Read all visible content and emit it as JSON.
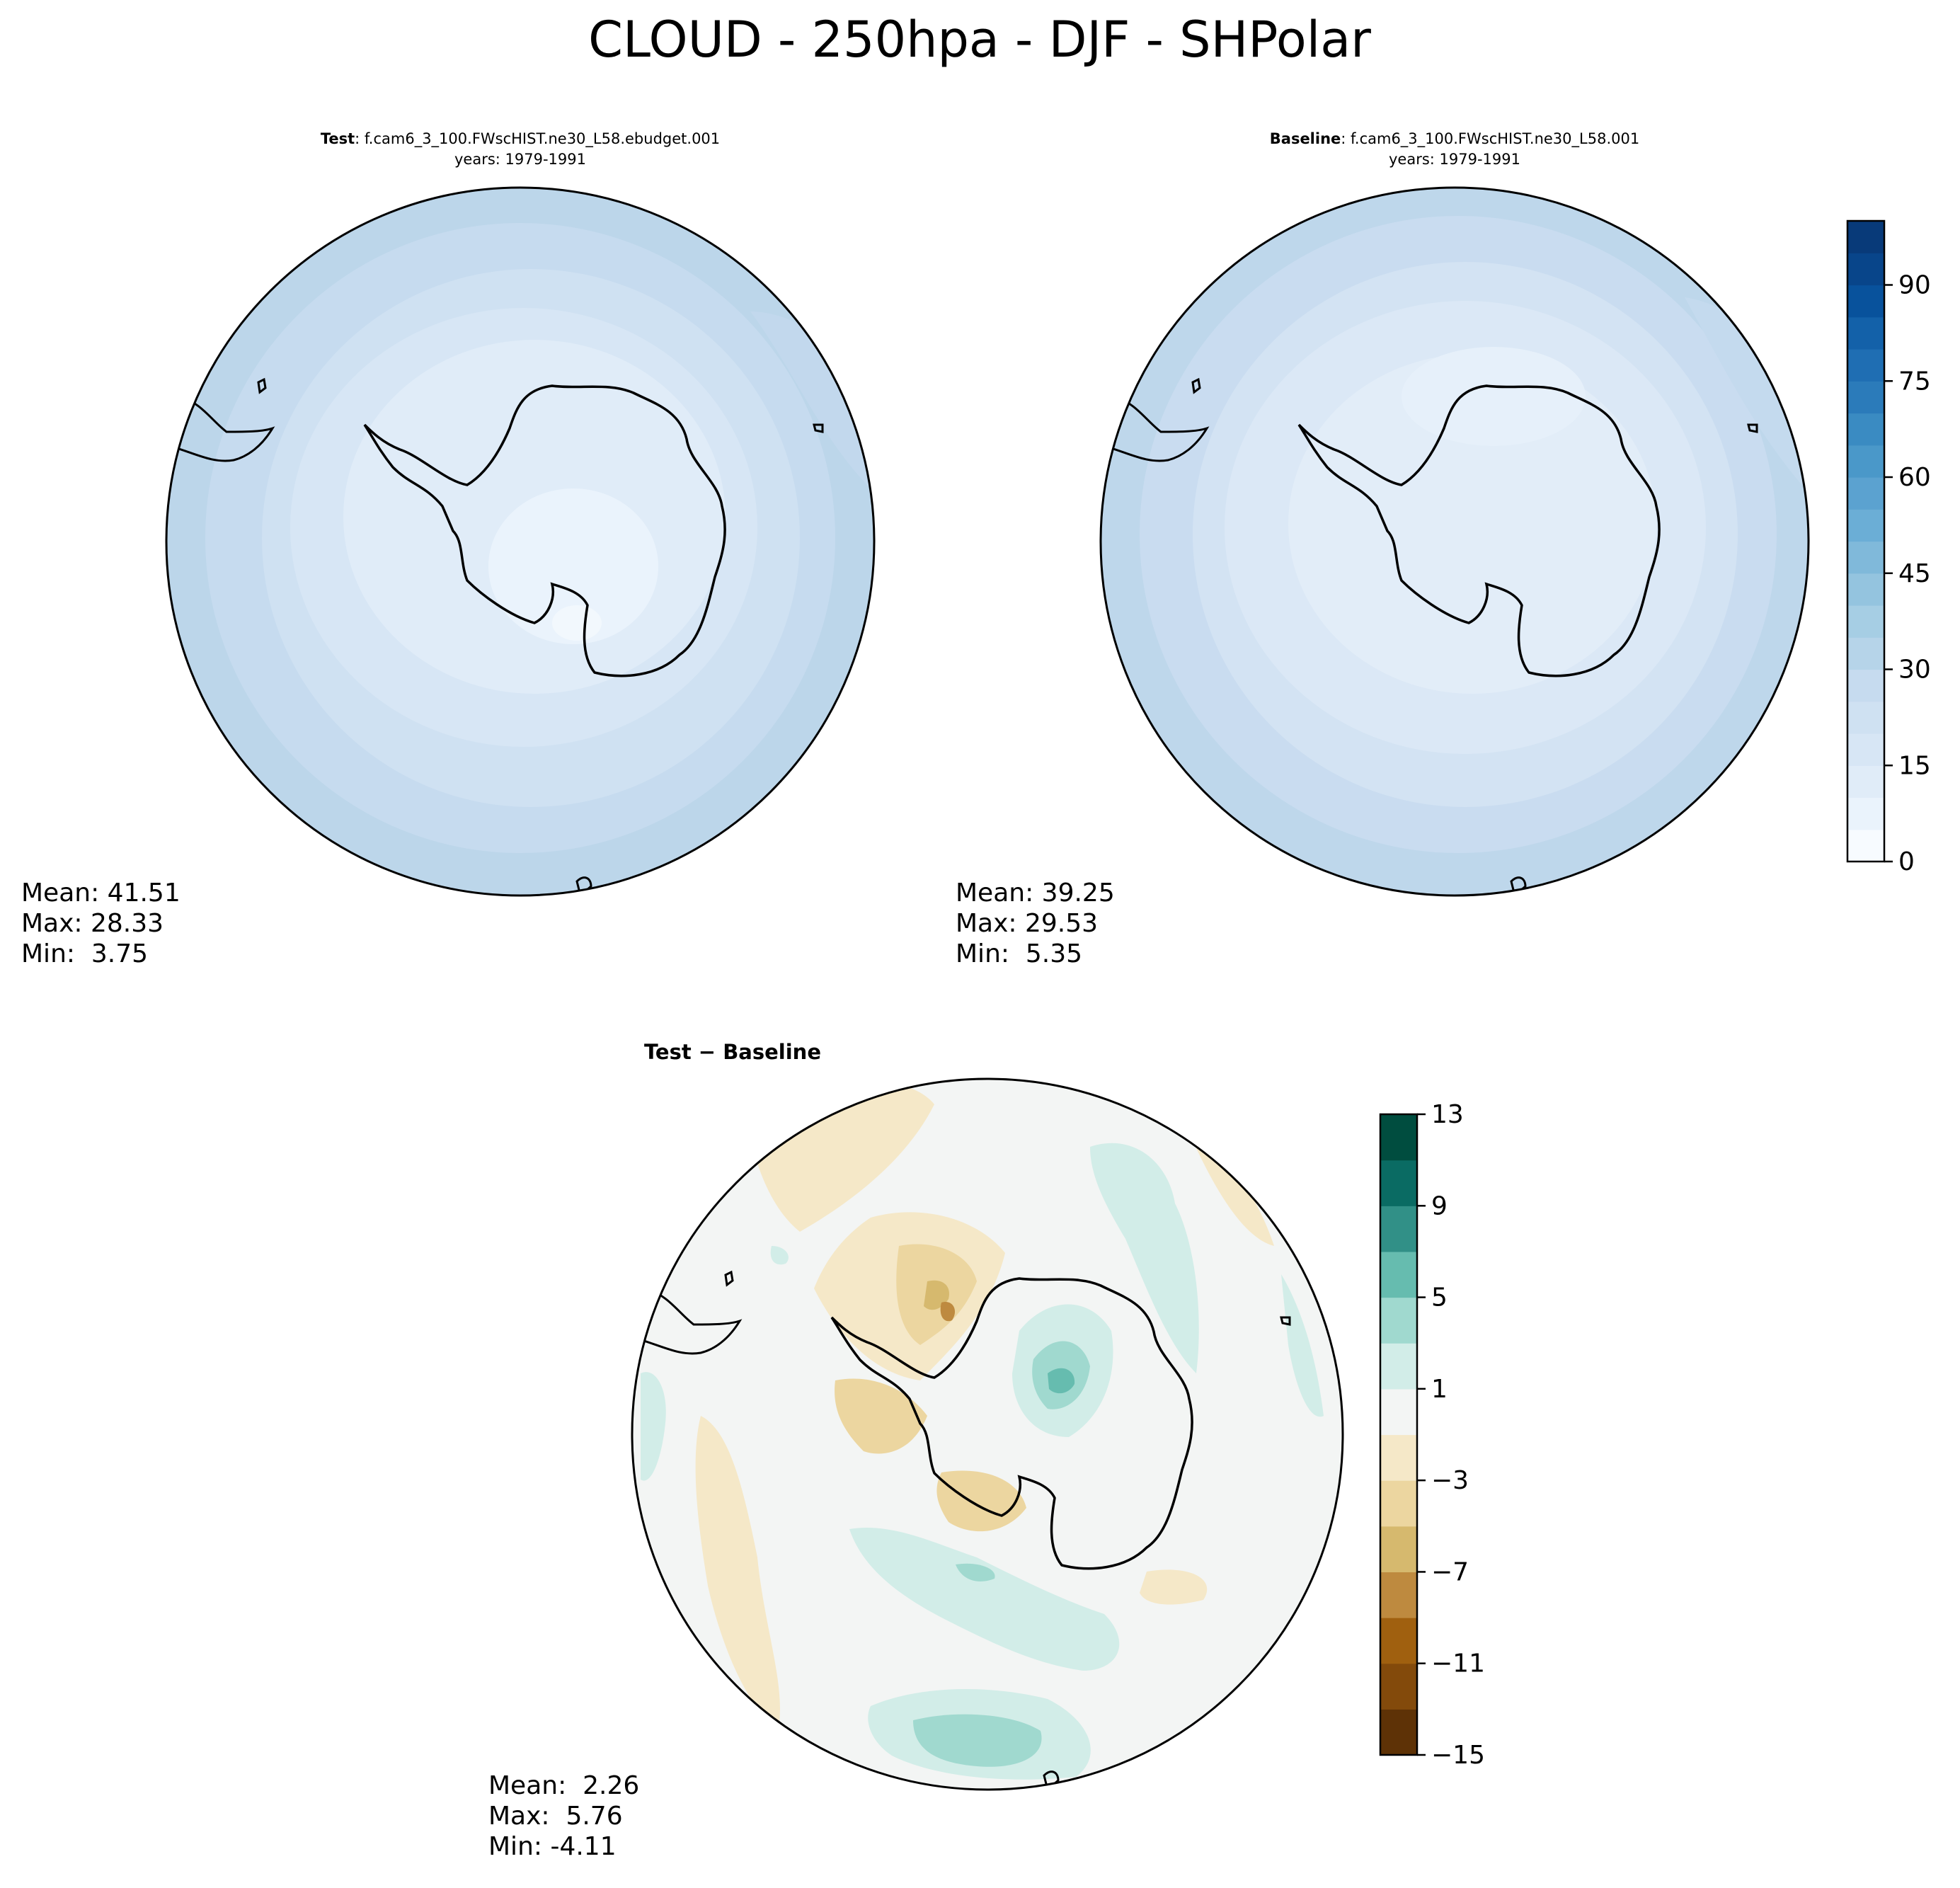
{
  "figure": {
    "title": "CLOUD - 250hpa - DJF - SHPolar"
  },
  "panels": [
    {
      "id": "test",
      "title_bold": "Test",
      "title_rest": ": f.cam6_3_100.FWscHIST.ne30_L58.ebudget.001",
      "subtitle": "years: 1979-1991",
      "stats": {
        "mean": "Mean: 41.51",
        "max": "Max: 28.33",
        "min": "Min:  3.75"
      }
    },
    {
      "id": "baseline",
      "title_bold": "Baseline",
      "title_rest": ": f.cam6_3_100.FWscHIST.ne30_L58.001",
      "subtitle": "years: 1979-1991",
      "stats": {
        "mean": "Mean: 39.25",
        "max": "Max: 29.53",
        "min": "Min:  5.35"
      }
    },
    {
      "id": "diff",
      "title_bold": "Test − Baseline",
      "title_rest": "",
      "subtitle": "",
      "stats": {
        "mean": "Mean:  2.26",
        "max": "Max:  5.76",
        "min": "Min: -4.11"
      }
    }
  ],
  "chart_data": [
    {
      "type": "heatmap",
      "title": "Test: f.cam6_3_100.FWscHIST.ne30_L58.ebudget.001 years: 1979-1991",
      "projection": "south-polar-stereographic",
      "variable": "CLOUD",
      "level": "250hpa",
      "season": "DJF",
      "mean": 41.51,
      "max": 28.33,
      "min": 3.75,
      "colorbar": {
        "range": [
          0,
          100
        ],
        "levels_step": 5,
        "ticks": [
          0,
          15,
          30,
          45,
          60,
          75,
          90
        ],
        "colormap": "Blues"
      }
    },
    {
      "type": "heatmap",
      "title": "Baseline: f.cam6_3_100.FWscHIST.ne30_L58.001 years: 1979-1991",
      "projection": "south-polar-stereographic",
      "variable": "CLOUD",
      "level": "250hpa",
      "season": "DJF",
      "mean": 39.25,
      "max": 29.53,
      "min": 5.35,
      "colorbar": {
        "range": [
          0,
          100
        ],
        "levels_step": 5,
        "ticks": [
          0,
          15,
          30,
          45,
          60,
          75,
          90
        ],
        "colormap": "Blues"
      }
    },
    {
      "type": "heatmap",
      "title": "Test − Baseline",
      "projection": "south-polar-stereographic",
      "mean": 2.26,
      "max": 5.76,
      "min": -4.11,
      "colorbar": {
        "range": [
          -15,
          13
        ],
        "levels_step": 2,
        "ticks": [
          13,
          9,
          5,
          1,
          -3,
          -7,
          -11,
          -15
        ],
        "colormap": "BrBG"
      }
    }
  ],
  "colorbars": {
    "blues": {
      "ticks": [
        "0",
        "15",
        "30",
        "45",
        "60",
        "75",
        "90"
      ],
      "tick_values": [
        0,
        15,
        30,
        45,
        60,
        75,
        90
      ],
      "min": 0,
      "max": 100,
      "colors": [
        "#f7fbff",
        "#eaf3fc",
        "#e0ecf8",
        "#d7e6f5",
        "#cfe1f2",
        "#c6dbef",
        "#b6d4e9",
        "#a6cee4",
        "#94c4df",
        "#80b9da",
        "#6baed6",
        "#5ba2d0",
        "#4a98c9",
        "#3a8bc2",
        "#2b7bba",
        "#1f6eb3",
        "#1361a9",
        "#08529c",
        "#08458a",
        "#083a79"
      ]
    },
    "diverging": {
      "ticks": [
        "13",
        "9",
        "5",
        "1",
        "−3",
        "−7",
        "−11",
        "−15"
      ],
      "tick_values": [
        13,
        9,
        5,
        1,
        -3,
        -7,
        -11,
        -15
      ],
      "min": -15,
      "max": 13,
      "colors": [
        "#5e3206",
        "#834a0b",
        "#a0600f",
        "#be8a3f",
        "#d6b96e",
        "#ecd6a0",
        "#f5e8c8",
        "#f3f5f4",
        "#d2ede8",
        "#a0d9cf",
        "#66bcaf",
        "#319087",
        "#0a6b63",
        "#004d3f"
      ]
    }
  },
  "colors": {
    "test_field": "#d8e7f5",
    "baseline_field": "#d3e3f3",
    "diff_field": "#f3f5f4"
  }
}
